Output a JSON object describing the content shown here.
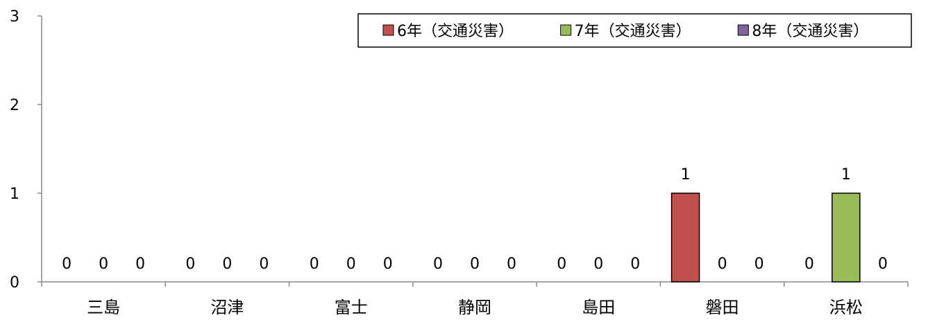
{
  "chart_data": {
    "type": "bar",
    "title": "",
    "xlabel": "",
    "ylabel": "",
    "ylim": [
      0,
      3
    ],
    "yticks": [
      0,
      1,
      2,
      3
    ],
    "grid": false,
    "legend_position": "top-right",
    "categories": [
      "三島",
      "沼津",
      "富士",
      "静岡",
      "島田",
      "磐田",
      "浜松"
    ],
    "series": [
      {
        "name": "6年（交通災害）",
        "color": "#c0504d",
        "values": [
          0,
          0,
          0,
          0,
          0,
          1,
          0
        ]
      },
      {
        "name": "7年（交通災害）",
        "color": "#9bbb59",
        "values": [
          0,
          0,
          0,
          0,
          0,
          0,
          1
        ]
      },
      {
        "name": "8年（交通災害）",
        "color": "#8064a2",
        "values": [
          0,
          0,
          0,
          0,
          0,
          0,
          0
        ]
      }
    ]
  }
}
